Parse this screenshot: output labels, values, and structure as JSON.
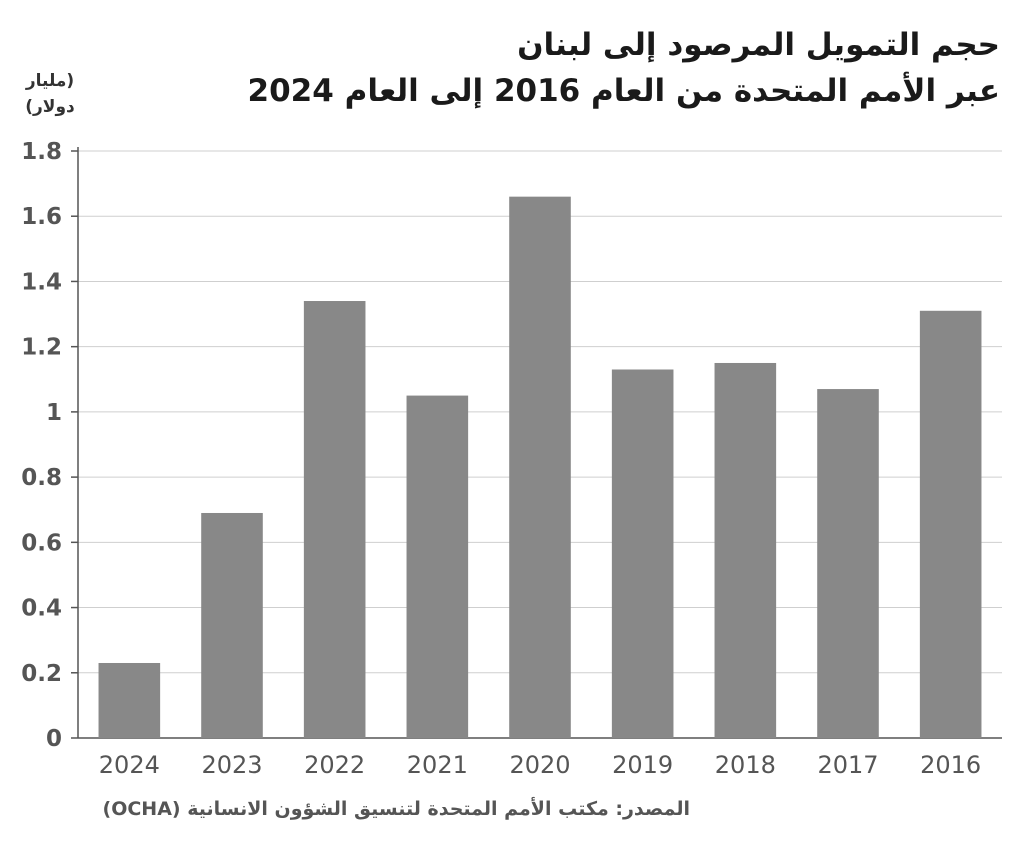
{
  "chart_data": {
    "type": "bar",
    "title_lines": [
      "حجم التمويل المرصود إلى لبنان",
      "عبر الأمم المتحدة من العام 2016 إلى العام 2024"
    ],
    "ylabel": "(مليار دولار)",
    "categories": [
      "2024",
      "2023",
      "2022",
      "2021",
      "2020",
      "2019",
      "2018",
      "2017",
      "2016"
    ],
    "values": [
      0.23,
      0.69,
      1.34,
      1.05,
      1.66,
      1.13,
      1.15,
      1.07,
      1.31
    ],
    "ylim": [
      0,
      1.8
    ],
    "yticks": [
      0,
      0.2,
      0.4,
      0.6,
      0.8,
      1,
      1.2,
      1.4,
      1.6,
      1.8
    ],
    "ytick_labels": [
      "0",
      "0.2",
      "0.4",
      "0.6",
      "0.8",
      "1",
      "1.2",
      "1.4",
      "1.6",
      "1.8"
    ],
    "grid": true,
    "bar_color": "#888888",
    "source": "المصدر: مكتب الأمم المتحدة لتنسيق الشؤون الانسانية (OCHA)"
  }
}
